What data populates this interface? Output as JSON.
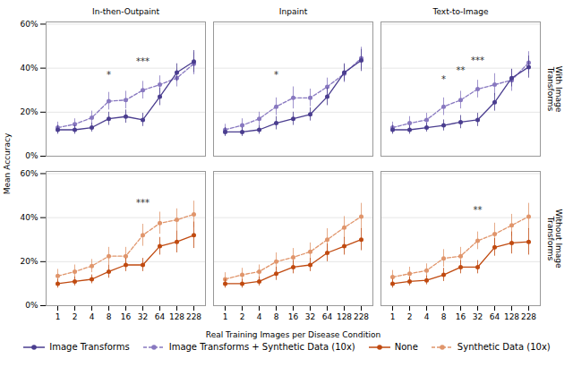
{
  "chart_data": {
    "type": "line",
    "x_label": "Real Training Images per Disease Condition",
    "y_label": "Mean Accuracy",
    "categories": [
      1,
      2,
      4,
      8,
      16,
      32,
      64,
      128,
      228
    ],
    "ylim": [
      0,
      0.61
    ],
    "yticks": [
      {
        "value": 0,
        "label": "0%"
      },
      {
        "value": 0.2,
        "label": "20%"
      },
      {
        "value": 0.4,
        "label": "40%"
      },
      {
        "value": 0.6,
        "label": "60%"
      }
    ],
    "grid": true,
    "legend": "bottom",
    "columns": [
      "In-then-Outpaint",
      "Inpaint",
      "Text-to-Image"
    ],
    "rows": [
      {
        "title": "With Image\nTransforms",
        "panels": [
          {
            "column": "In-then-Outpaint",
            "series": [
              {
                "name": "Image Transforms",
                "color": "#4a3d8f",
                "line_style": "solid",
                "marker": "circle",
                "values": [
                  0.12,
                  0.12,
                  0.13,
                  0.17,
                  0.18,
                  0.165,
                  0.27,
                  0.38,
                  0.43
                ],
                "errors": [
                  0.02,
                  0.02,
                  0.02,
                  0.03,
                  0.03,
                  0.03,
                  0.04,
                  0.04,
                  0.05
                ]
              },
              {
                "name": "Image Transforms + Synthetic Data (10x)",
                "color": "#8878c0",
                "line_style": "dashed",
                "marker": "circle",
                "values": [
                  0.13,
                  0.145,
                  0.175,
                  0.25,
                  0.255,
                  0.3,
                  0.325,
                  0.355,
                  0.42
                ],
                "errors": [
                  0.025,
                  0.025,
                  0.03,
                  0.04,
                  0.04,
                  0.04,
                  0.04,
                  0.04,
                  0.05
                ]
              }
            ],
            "annotations": [
              {
                "x": 8,
                "y": 0.355,
                "text": "*"
              },
              {
                "x": 32,
                "y": 0.415,
                "text": "***"
              }
            ]
          },
          {
            "column": "Inpaint",
            "series": [
              {
                "name": "Image Transforms",
                "color": "#4a3d8f",
                "line_style": "solid",
                "marker": "circle",
                "values": [
                  0.11,
                  0.11,
                  0.12,
                  0.15,
                  0.17,
                  0.19,
                  0.27,
                  0.38,
                  0.435
                ],
                "errors": [
                  0.02,
                  0.02,
                  0.02,
                  0.03,
                  0.03,
                  0.03,
                  0.04,
                  0.04,
                  0.05
                ]
              },
              {
                "name": "Image Transforms + Synthetic Data (10x)",
                "color": "#8878c0",
                "line_style": "dashed",
                "marker": "circle",
                "values": [
                  0.12,
                  0.14,
                  0.17,
                  0.225,
                  0.265,
                  0.265,
                  0.315,
                  0.375,
                  0.445
                ],
                "errors": [
                  0.025,
                  0.03,
                  0.03,
                  0.04,
                  0.05,
                  0.04,
                  0.04,
                  0.04,
                  0.05
                ]
              }
            ],
            "annotations": [
              {
                "x": 8,
                "y": 0.355,
                "text": "*"
              }
            ]
          },
          {
            "column": "Text-to-Image",
            "series": [
              {
                "name": "Image Transforms",
                "color": "#4a3d8f",
                "line_style": "solid",
                "marker": "circle",
                "values": [
                  0.12,
                  0.12,
                  0.13,
                  0.14,
                  0.155,
                  0.165,
                  0.245,
                  0.355,
                  0.405
                ],
                "errors": [
                  0.02,
                  0.02,
                  0.02,
                  0.025,
                  0.03,
                  0.03,
                  0.04,
                  0.04,
                  0.05
                ]
              },
              {
                "name": "Image Transforms + Synthetic Data (10x)",
                "color": "#8878c0",
                "line_style": "dashed",
                "marker": "circle",
                "values": [
                  0.13,
                  0.15,
                  0.165,
                  0.225,
                  0.255,
                  0.305,
                  0.325,
                  0.345,
                  0.425
                ],
                "errors": [
                  0.025,
                  0.03,
                  0.03,
                  0.04,
                  0.04,
                  0.04,
                  0.05,
                  0.05,
                  0.05
                ]
              }
            ],
            "annotations": [
              {
                "x": 8,
                "y": 0.335,
                "text": "*"
              },
              {
                "x": 16,
                "y": 0.375,
                "text": "**"
              },
              {
                "x": 32,
                "y": 0.42,
                "text": "***"
              }
            ]
          }
        ]
      },
      {
        "title": "Without Image\nTransforms",
        "panels": [
          {
            "column": "In-then-Outpaint",
            "series": [
              {
                "name": "None",
                "color": "#c04a10",
                "line_style": "solid",
                "marker": "circle",
                "values": [
                  0.1,
                  0.11,
                  0.12,
                  0.155,
                  0.185,
                  0.185,
                  0.27,
                  0.29,
                  0.32
                ],
                "errors": [
                  0.02,
                  0.02,
                  0.02,
                  0.03,
                  0.03,
                  0.03,
                  0.04,
                  0.05,
                  0.06
                ]
              },
              {
                "name": "Synthetic Data (10x)",
                "color": "#e0956b",
                "line_style": "dashed",
                "marker": "circle",
                "values": [
                  0.135,
                  0.155,
                  0.18,
                  0.225,
                  0.225,
                  0.32,
                  0.375,
                  0.39,
                  0.415
                ],
                "errors": [
                  0.03,
                  0.03,
                  0.03,
                  0.04,
                  0.04,
                  0.05,
                  0.05,
                  0.05,
                  0.06
                ]
              }
            ],
            "annotations": [
              {
                "x": 32,
                "y": 0.455,
                "text": "***"
              }
            ]
          },
          {
            "column": "Inpaint",
            "series": [
              {
                "name": "None",
                "color": "#c04a10",
                "line_style": "solid",
                "marker": "circle",
                "values": [
                  0.1,
                  0.1,
                  0.11,
                  0.145,
                  0.175,
                  0.185,
                  0.24,
                  0.27,
                  0.3
                ],
                "errors": [
                  0.02,
                  0.02,
                  0.02,
                  0.03,
                  0.03,
                  0.03,
                  0.04,
                  0.04,
                  0.05
                ]
              },
              {
                "name": "Synthetic Data (10x)",
                "color": "#e0956b",
                "line_style": "dashed",
                "marker": "circle",
                "values": [
                  0.12,
                  0.14,
                  0.155,
                  0.2,
                  0.22,
                  0.245,
                  0.3,
                  0.355,
                  0.405
                ],
                "errors": [
                  0.03,
                  0.03,
                  0.03,
                  0.04,
                  0.04,
                  0.04,
                  0.05,
                  0.05,
                  0.06
                ]
              }
            ],
            "annotations": []
          },
          {
            "column": "Text-to-Image",
            "series": [
              {
                "name": "None",
                "color": "#c04a10",
                "line_style": "solid",
                "marker": "circle",
                "values": [
                  0.1,
                  0.11,
                  0.115,
                  0.14,
                  0.175,
                  0.175,
                  0.265,
                  0.285,
                  0.29
                ],
                "errors": [
                  0.02,
                  0.02,
                  0.02,
                  0.03,
                  0.03,
                  0.03,
                  0.04,
                  0.05,
                  0.06
                ]
              },
              {
                "name": "Synthetic Data (10x)",
                "color": "#e0956b",
                "line_style": "dashed",
                "marker": "circle",
                "values": [
                  0.13,
                  0.145,
                  0.16,
                  0.215,
                  0.225,
                  0.295,
                  0.325,
                  0.365,
                  0.405
                ],
                "errors": [
                  0.03,
                  0.03,
                  0.03,
                  0.04,
                  0.04,
                  0.04,
                  0.05,
                  0.05,
                  0.06
                ]
              }
            ],
            "annotations": [
              {
                "x": 32,
                "y": 0.42,
                "text": "**"
              }
            ]
          }
        ]
      }
    ]
  }
}
